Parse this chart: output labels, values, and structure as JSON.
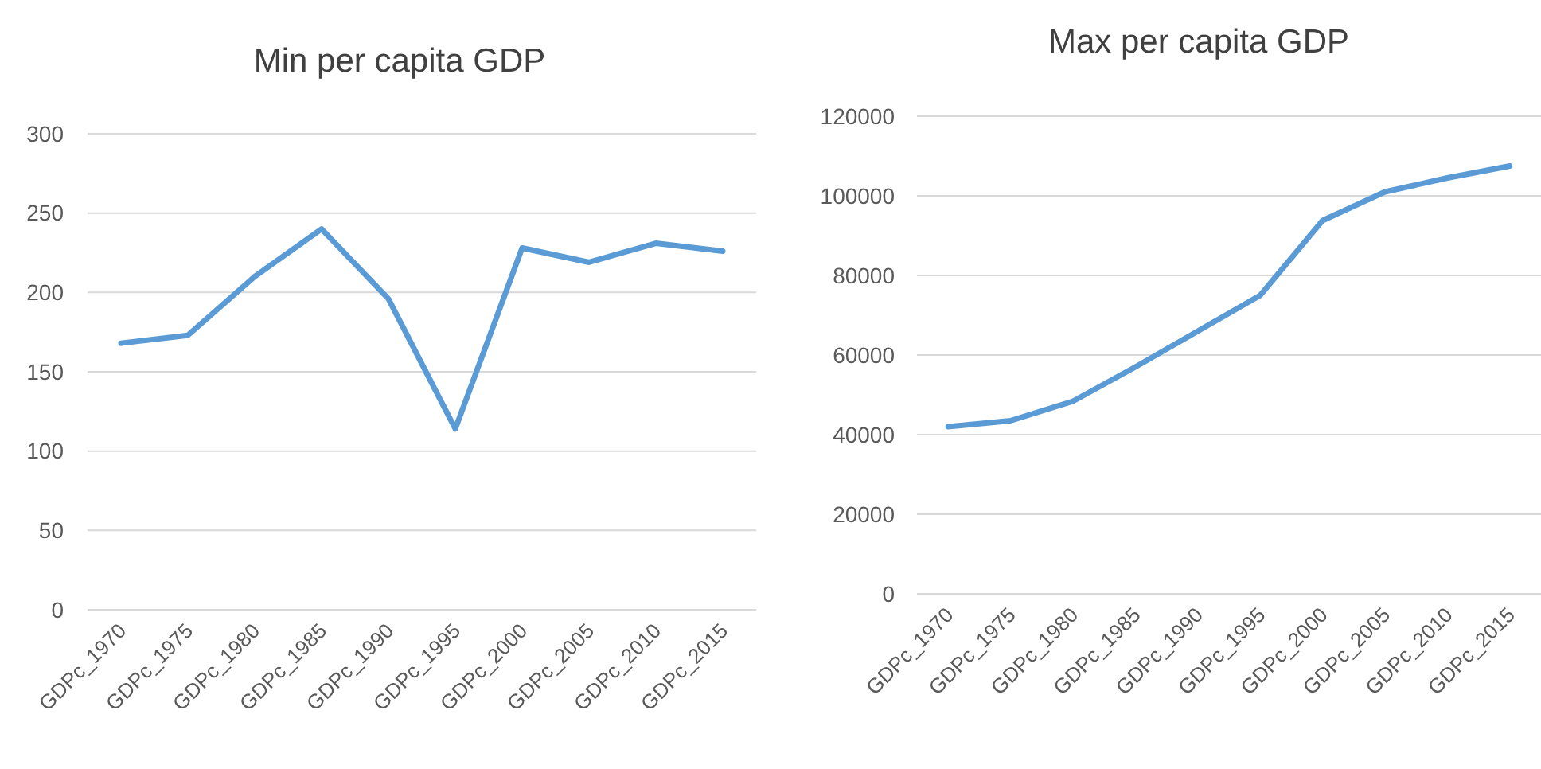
{
  "chart_data": [
    {
      "type": "line",
      "title": "Min per capita GDP",
      "categories": [
        "GDPc_1970",
        "GDPc_1975",
        "GDPc_1980",
        "GDPc_1985",
        "GDPc_1990",
        "GDPc_1995",
        "GDPc_2000",
        "GDPc_2005",
        "GDPc_2010",
        "GDPc_2015"
      ],
      "values": [
        168,
        173,
        210,
        240,
        196,
        114,
        228,
        219,
        231,
        226
      ],
      "color": "#5b9bd5",
      "ylim": [
        0,
        300
      ],
      "yticks": [
        0,
        50,
        100,
        150,
        200,
        250,
        300
      ],
      "grid": "y"
    },
    {
      "type": "line",
      "title": "Max per capita GDP",
      "categories": [
        "GDPc_1970",
        "GDPc_1975",
        "GDPc_1980",
        "GDPc_1985",
        "GDPc_1990",
        "GDPc_1995",
        "GDPc_2000",
        "GDPc_2005",
        "GDPc_2010",
        "GDPc_2015"
      ],
      "values": [
        42000,
        43500,
        48400,
        57000,
        66000,
        75000,
        93800,
        101000,
        104500,
        107500
      ],
      "color": "#5b9bd5",
      "ylim": [
        0,
        120000
      ],
      "yticks": [
        0,
        20000,
        40000,
        60000,
        80000,
        100000,
        120000
      ],
      "grid": "y"
    }
  ]
}
